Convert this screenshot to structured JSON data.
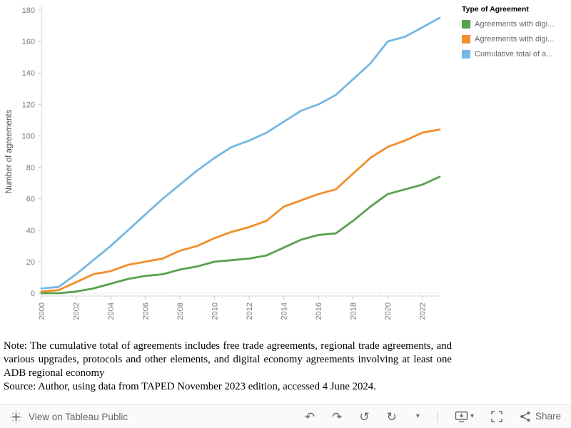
{
  "chart_data": {
    "type": "line",
    "title": "",
    "xlabel": "",
    "ylabel": "Number of agreements",
    "ylim": [
      0,
      180
    ],
    "yticks": [
      0,
      20,
      40,
      60,
      80,
      100,
      120,
      140,
      160,
      180
    ],
    "x": [
      2000,
      2001,
      2002,
      2003,
      2004,
      2005,
      2006,
      2007,
      2008,
      2009,
      2010,
      2011,
      2012,
      2013,
      2014,
      2015,
      2016,
      2017,
      2018,
      2019,
      2020,
      2021,
      2022,
      2023
    ],
    "x_label_every": 2,
    "grid": false,
    "zero_line": "dotted",
    "legend_position": "top-right",
    "legend_title": "Type of Agreement",
    "series": [
      {
        "name": "Agreements with digi...",
        "color": "#59A14F",
        "values": [
          0,
          0,
          1,
          3,
          6,
          9,
          11,
          12,
          15,
          17,
          20,
          21,
          22,
          24,
          29,
          34,
          37,
          38,
          46,
          55,
          63,
          66,
          69,
          74
        ]
      },
      {
        "name": "Agreements with digi...",
        "color": "#F28E2B",
        "values": [
          1,
          2,
          7,
          12,
          14,
          18,
          20,
          22,
          27,
          30,
          35,
          39,
          42,
          46,
          55,
          59,
          63,
          66,
          76,
          86,
          93,
          97,
          102,
          104
        ]
      },
      {
        "name": "Cumulative total of a...",
        "color": "#76B7E2",
        "values": [
          3,
          4,
          12,
          21,
          30,
          40,
          50,
          60,
          69,
          78,
          86,
          93,
          97,
          102,
          109,
          116,
          120,
          126,
          136,
          146,
          160,
          163,
          169,
          175
        ]
      }
    ]
  },
  "note": {
    "text": "Note: The cumulative total of agreements includes free trade agreements, regional trade agreements, and various upgrades, protocols and other elements, and digital economy agreements involving at least one ADB regional economy",
    "source": "Source: Author, using data from TAPED November 2023 edition, accessed 4 June 2024."
  },
  "footer": {
    "view_label": "View on Tableau Public",
    "share_label": "Share",
    "icons": {
      "undo": "↶",
      "redo": "↷",
      "revert": "↺",
      "refresh": "↻",
      "caret": "▾"
    }
  },
  "colors": {
    "tick_text": "#7b7b7b",
    "axis_line": "#d6d6d6",
    "toolbar_text": "#666666",
    "footer_bg": "#fafafa"
  }
}
